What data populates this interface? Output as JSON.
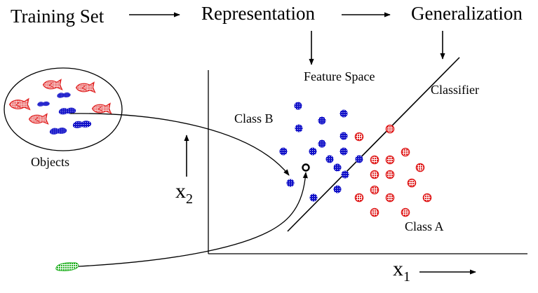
{
  "pipeline": {
    "step1": "Training Set",
    "step2": "Representation",
    "step3": "Generalization"
  },
  "labels": {
    "feature_space": "Feature Space",
    "classifier": "Classifier",
    "class_b": "Class B",
    "class_a": "Class A",
    "objects": "Objects",
    "x1_base": "x",
    "x1_sub": "1",
    "x2_base": "x",
    "x2_sub": "2"
  },
  "colors": {
    "class_b": "#1010c8",
    "class_a": "#e02020",
    "new_object": "#20b020",
    "ink": "#000000"
  },
  "icons": {
    "fish": "fish-icon",
    "blob": "blob-icon"
  }
}
